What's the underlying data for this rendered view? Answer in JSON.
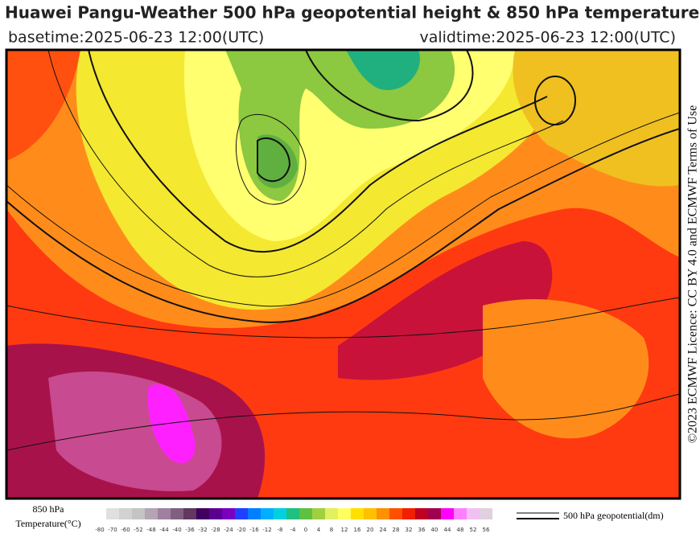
{
  "header": {
    "title": "Huawei Pangu-Weather 500 hPa geopotential height & 850 hPa temperature",
    "basetime": "basetime:2025-06-23 12:00(UTC)",
    "validtime": "validtime:2025-06-23 12:00(UTC)"
  },
  "licence": "©2023 ECMWF Licence: CC BY 4.0 and ECMWF Terms of Use",
  "colorbar": {
    "title_line1": "850 hPa",
    "title_line2": "Temperature(°C)",
    "ticks": [
      -80,
      -70,
      -60,
      -52,
      -48,
      -44,
      -40,
      -36,
      -32,
      -28,
      -24,
      -20,
      -16,
      -12,
      -8,
      -4,
      0,
      4,
      8,
      12,
      16,
      20,
      24,
      28,
      32,
      36,
      40,
      44,
      48,
      52,
      56
    ],
    "colors": [
      "#e0e0e0",
      "#d2d2d2",
      "#c4c4c4",
      "#b4a4b4",
      "#a080a0",
      "#806080",
      "#603860",
      "#400060",
      "#5a0090",
      "#7a00c0",
      "#2040ff",
      "#0080ff",
      "#00b0ff",
      "#00d0e0",
      "#20c080",
      "#60c040",
      "#a0d040",
      "#e0f060",
      "#ffff60",
      "#ffe000",
      "#ffc000",
      "#ff9000",
      "#ff5000",
      "#f02000",
      "#c00020",
      "#a00050",
      "#ff00ff",
      "#ff80ff",
      "#f0c0f0",
      "#e0d0e0"
    ]
  },
  "contour_legend": "500 hPa geopotential(dm)"
}
